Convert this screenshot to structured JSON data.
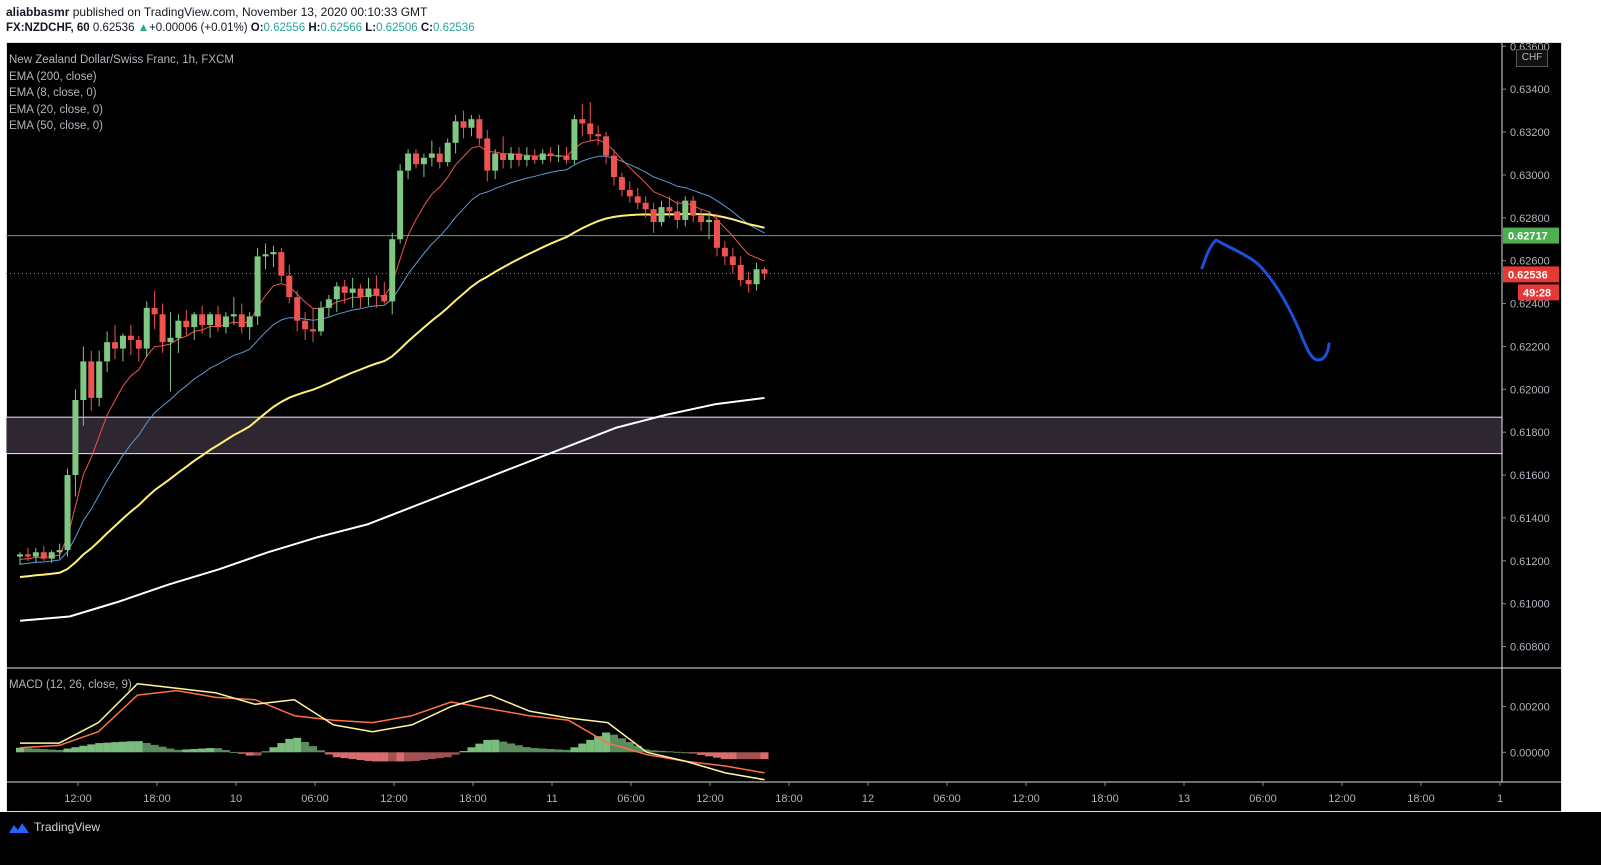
{
  "header": {
    "author": "aliabbasmr",
    "published_text": "published on TradingView.com, November 13, 2020 00:10:33 GMT",
    "symbol": "FX:NZDCHF, 60",
    "last": "0.62536",
    "change_arrow": "▲",
    "change": "+0.00006 (+0.01%)",
    "o_label": "O:",
    "o_value": "0.62556",
    "h_label": "H:",
    "h_value": "0.62566",
    "l_label": "L:",
    "l_value": "0.62506",
    "c_label": "C:",
    "c_value": "0.62536"
  },
  "legend": {
    "title": "New Zealand Dollar/Swiss Franc, 1h, FXCM",
    "items": [
      "EMA (200, close)",
      "EMA (8, close, 0)",
      "EMA (20, close, 0)",
      "EMA (50, close, 0)"
    ],
    "macd": "MACD (12, 26, close, 9)"
  },
  "currency_badge": "CHF",
  "footer": {
    "brand": "TradingView"
  },
  "colors": {
    "background": "#000000",
    "up": "#81c784",
    "down": "#ef5350",
    "ema8": "#ef5350",
    "ema20": "#5b9bd5",
    "ema50": "#fff176",
    "ema200": "#ffffff",
    "green_level": "#4caf50",
    "macd_line": "#fff59d",
    "signal_line": "#ff7043",
    "drawing": "#1e4fd8"
  },
  "chart_data": {
    "type": "candlestick",
    "symbol": "FX:NZDCHF",
    "interval": "60",
    "x_ticks": [
      "12:00",
      "18:00",
      "10",
      "06:00",
      "12:00",
      "18:00",
      "11",
      "06:00",
      "12:00",
      "18:00",
      "12",
      "06:00",
      "12:00",
      "18:00",
      "13",
      "06:00",
      "12:00",
      "18:00",
      "1"
    ],
    "y_ticks": [
      "0.63600",
      "0.63400",
      "0.63200",
      "0.63000",
      "0.62800",
      "0.62600",
      "0.62400",
      "0.62200",
      "0.62000",
      "0.61800",
      "0.61600",
      "0.61400",
      "0.61200",
      "0.61000",
      "0.60800"
    ],
    "price_axis_labels": {
      "level": "0.62717",
      "last": "0.62536",
      "countdown": "49:28"
    },
    "ylim": [
      0.607,
      0.6362
    ],
    "candles": [
      [
        0.6122,
        0.6124,
        0.6118,
        0.6123
      ],
      [
        0.6123,
        0.6126,
        0.612,
        0.6122
      ],
      [
        0.6122,
        0.6126,
        0.6119,
        0.6124
      ],
      [
        0.6124,
        0.6127,
        0.612,
        0.6121
      ],
      [
        0.6121,
        0.6125,
        0.6119,
        0.6124
      ],
      [
        0.6124,
        0.6128,
        0.6121,
        0.6125
      ],
      [
        0.6125,
        0.6163,
        0.6122,
        0.616
      ],
      [
        0.616,
        0.62,
        0.615,
        0.6195
      ],
      [
        0.6195,
        0.622,
        0.6183,
        0.6213
      ],
      [
        0.6213,
        0.6218,
        0.619,
        0.6196
      ],
      [
        0.6196,
        0.6218,
        0.6192,
        0.6213
      ],
      [
        0.6213,
        0.6227,
        0.6208,
        0.6222
      ],
      [
        0.6222,
        0.623,
        0.6214,
        0.6219
      ],
      [
        0.6219,
        0.6226,
        0.6213,
        0.6225
      ],
      [
        0.6225,
        0.623,
        0.6216,
        0.6223
      ],
      [
        0.6223,
        0.6225,
        0.6213,
        0.6219
      ],
      [
        0.6219,
        0.6241,
        0.6215,
        0.6238
      ],
      [
        0.6238,
        0.6246,
        0.6228,
        0.6235
      ],
      [
        0.6235,
        0.624,
        0.6217,
        0.6222
      ],
      [
        0.6222,
        0.6236,
        0.6199,
        0.6224
      ],
      [
        0.6224,
        0.6235,
        0.6217,
        0.6232
      ],
      [
        0.6232,
        0.6237,
        0.6225,
        0.6229
      ],
      [
        0.6229,
        0.6236,
        0.6223,
        0.6235
      ],
      [
        0.6235,
        0.6239,
        0.6226,
        0.623
      ],
      [
        0.623,
        0.6236,
        0.6224,
        0.6235
      ],
      [
        0.6235,
        0.6239,
        0.6227,
        0.6229
      ],
      [
        0.6229,
        0.6236,
        0.6226,
        0.6234
      ],
      [
        0.6234,
        0.6243,
        0.623,
        0.6235
      ],
      [
        0.6235,
        0.624,
        0.6226,
        0.6229
      ],
      [
        0.6229,
        0.6236,
        0.6223,
        0.6234
      ],
      [
        0.6234,
        0.6266,
        0.623,
        0.6262
      ],
      [
        0.6262,
        0.6268,
        0.6256,
        0.6263
      ],
      [
        0.6263,
        0.6267,
        0.6257,
        0.6264
      ],
      [
        0.6264,
        0.6266,
        0.625,
        0.6253
      ],
      [
        0.6253,
        0.6258,
        0.624,
        0.6243
      ],
      [
        0.6243,
        0.6246,
        0.6227,
        0.6232
      ],
      [
        0.6232,
        0.6236,
        0.6223,
        0.6228
      ],
      [
        0.6228,
        0.6238,
        0.6222,
        0.6227
      ],
      [
        0.6227,
        0.6241,
        0.6225,
        0.6238
      ],
      [
        0.6238,
        0.6244,
        0.6234,
        0.6242
      ],
      [
        0.6242,
        0.625,
        0.6236,
        0.6248
      ],
      [
        0.6248,
        0.6251,
        0.624,
        0.6245
      ],
      [
        0.6245,
        0.6252,
        0.6238,
        0.6247
      ],
      [
        0.6247,
        0.6249,
        0.6238,
        0.6243
      ],
      [
        0.6243,
        0.6252,
        0.6239,
        0.6247
      ],
      [
        0.6247,
        0.6253,
        0.6238,
        0.6244
      ],
      [
        0.6244,
        0.625,
        0.624,
        0.6241
      ],
      [
        0.6241,
        0.6273,
        0.6235,
        0.627
      ],
      [
        0.627,
        0.6305,
        0.6268,
        0.6302
      ],
      [
        0.6302,
        0.6312,
        0.6298,
        0.631
      ],
      [
        0.631,
        0.6312,
        0.6303,
        0.6305
      ],
      [
        0.6305,
        0.631,
        0.6299,
        0.6308
      ],
      [
        0.6308,
        0.6316,
        0.6304,
        0.631
      ],
      [
        0.631,
        0.6313,
        0.6303,
        0.6306
      ],
      [
        0.6306,
        0.6317,
        0.6304,
        0.6315
      ],
      [
        0.6315,
        0.6328,
        0.631,
        0.6325
      ],
      [
        0.6325,
        0.633,
        0.6317,
        0.6322
      ],
      [
        0.6322,
        0.6328,
        0.6318,
        0.6326
      ],
      [
        0.6326,
        0.6328,
        0.6314,
        0.6317
      ],
      [
        0.6317,
        0.6321,
        0.6297,
        0.6302
      ],
      [
        0.6302,
        0.6312,
        0.6298,
        0.631
      ],
      [
        0.631,
        0.6318,
        0.6303,
        0.6307
      ],
      [
        0.6307,
        0.6313,
        0.6303,
        0.631
      ],
      [
        0.631,
        0.6313,
        0.6304,
        0.6307
      ],
      [
        0.6307,
        0.6313,
        0.6304,
        0.6309
      ],
      [
        0.6309,
        0.6312,
        0.6305,
        0.6307
      ],
      [
        0.6307,
        0.6312,
        0.6305,
        0.631
      ],
      [
        0.631,
        0.6313,
        0.6306,
        0.6309
      ],
      [
        0.6309,
        0.6314,
        0.6306,
        0.6309
      ],
      [
        0.6309,
        0.6313,
        0.6305,
        0.6307
      ],
      [
        0.6307,
        0.6328,
        0.6305,
        0.6326
      ],
      [
        0.6326,
        0.6333,
        0.6318,
        0.6324
      ],
      [
        0.6324,
        0.6334,
        0.6316,
        0.6319
      ],
      [
        0.6319,
        0.6323,
        0.6314,
        0.6318
      ],
      [
        0.6318,
        0.632,
        0.6305,
        0.6309
      ],
      [
        0.6309,
        0.6312,
        0.6295,
        0.6299
      ],
      [
        0.6299,
        0.6301,
        0.629,
        0.6293
      ],
      [
        0.6293,
        0.6297,
        0.6287,
        0.629
      ],
      [
        0.629,
        0.6294,
        0.6284,
        0.6287
      ],
      [
        0.6287,
        0.629,
        0.628,
        0.6284
      ],
      [
        0.6284,
        0.6287,
        0.6273,
        0.6278
      ],
      [
        0.6278,
        0.6288,
        0.6276,
        0.6285
      ],
      [
        0.6285,
        0.629,
        0.628,
        0.6283
      ],
      [
        0.6283,
        0.6288,
        0.6275,
        0.6279
      ],
      [
        0.6279,
        0.629,
        0.6276,
        0.6288
      ],
      [
        0.6288,
        0.629,
        0.6278,
        0.6281
      ],
      [
        0.6281,
        0.6284,
        0.6274,
        0.6278
      ],
      [
        0.6278,
        0.6283,
        0.627,
        0.6279
      ],
      [
        0.6279,
        0.6282,
        0.6262,
        0.6266
      ],
      [
        0.6266,
        0.6269,
        0.6258,
        0.6262
      ],
      [
        0.6262,
        0.6266,
        0.6254,
        0.6258
      ],
      [
        0.6258,
        0.6262,
        0.6248,
        0.6251
      ],
      [
        0.6251,
        0.6255,
        0.6245,
        0.6249
      ],
      [
        0.6249,
        0.6259,
        0.6246,
        0.6256
      ],
      [
        0.6256,
        0.6257,
        0.6251,
        0.6254
      ]
    ],
    "ema200_anchor_values": [
      0.6092,
      0.6094,
      0.6101,
      0.6109,
      0.6116,
      0.6124,
      0.6131,
      0.6137,
      0.6146,
      0.6155,
      0.6164,
      0.6173,
      0.6182,
      0.6188,
      0.6193,
      0.6196
    ],
    "horizontal_levels": {
      "green_line": 0.62717,
      "zone_top": 0.6187,
      "zone_bottom": 0.617
    },
    "macd": {
      "ylim": [
        -0.0013,
        0.0036
      ],
      "y_ticks": [
        "0.00200",
        "0.00000"
      ],
      "macd_anchor_values": [
        0.0004,
        0.0004,
        0.0013,
        0.003,
        0.0028,
        0.0026,
        0.0021,
        0.0023,
        0.0012,
        0.0009,
        0.0012,
        0.002,
        0.0025,
        0.0018,
        0.0015,
        0.0013,
        0.0,
        -0.0004,
        -0.0009,
        -0.0012
      ],
      "signal_anchor_values": [
        0.0002,
        0.0003,
        0.0009,
        0.0025,
        0.0027,
        0.0024,
        0.0023,
        0.0016,
        0.0014,
        0.0013,
        0.0016,
        0.0022,
        0.0019,
        0.0016,
        0.0014,
        0.0004,
        -0.0001,
        -0.0004,
        -0.0006,
        -0.0009
      ]
    }
  }
}
